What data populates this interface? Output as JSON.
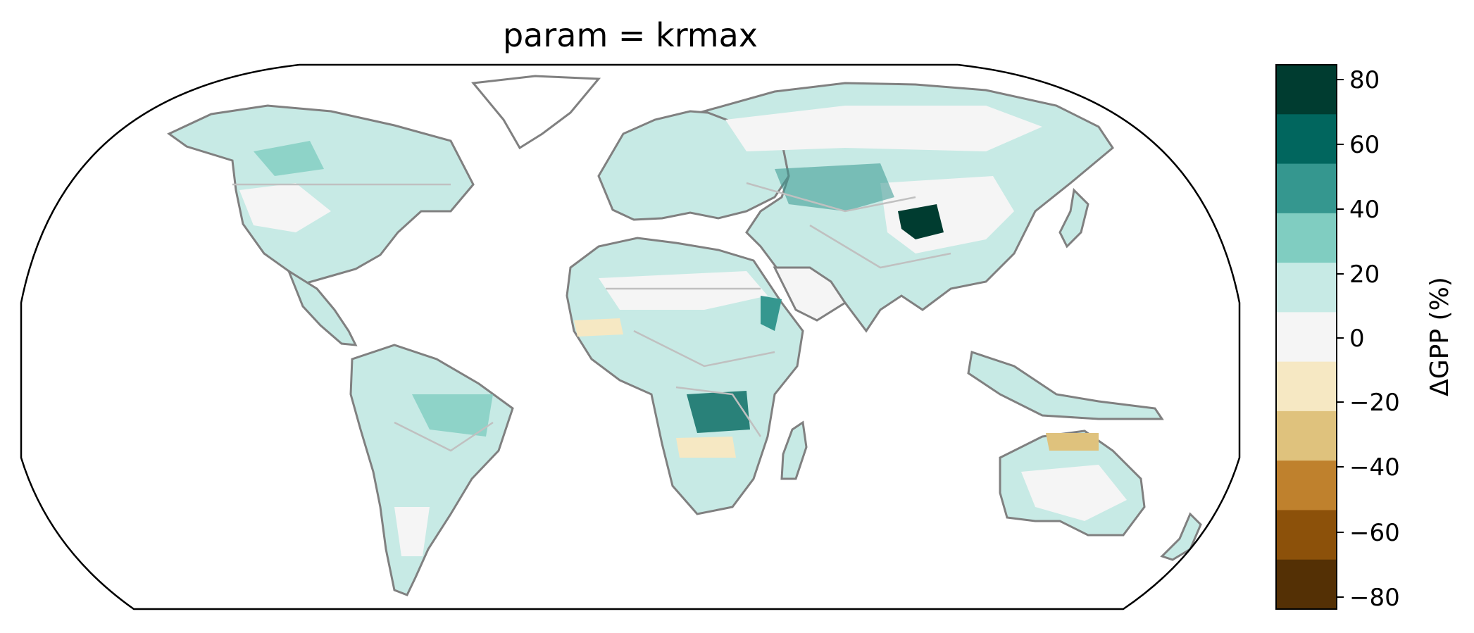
{
  "title": "param = krmax",
  "colorbar": {
    "label": "ΔGPP (%)",
    "tick_labels": [
      "80",
      "60",
      "40",
      "20",
      "0",
      "−20",
      "−40",
      "−60",
      "−80"
    ],
    "bins": [
      {
        "range": [
          70,
          90
        ],
        "color": "#003c30"
      },
      {
        "range": [
          50,
          70
        ],
        "color": "#01665e"
      },
      {
        "range": [
          30,
          50
        ],
        "color": "#35978f"
      },
      {
        "range": [
          10,
          30
        ],
        "color": "#80cdc1"
      },
      {
        "range": [
          5,
          10
        ],
        "color": "#c7eae5"
      },
      {
        "range": [
          -5,
          5
        ],
        "color": "#f5f5f5"
      },
      {
        "range": [
          -10,
          -5
        ],
        "color": "#f6e8c3"
      },
      {
        "range": [
          -30,
          -10
        ],
        "color": "#dfc27d"
      },
      {
        "range": [
          -50,
          -30
        ],
        "color": "#bf812d"
      },
      {
        "range": [
          -70,
          -50
        ],
        "color": "#8c510a"
      },
      {
        "range": [
          -90,
          -70
        ],
        "color": "#543005"
      }
    ]
  },
  "map": {
    "projection": "Robinson",
    "coastline_color": "#808080",
    "border_color": "#c0c0c0"
  }
}
